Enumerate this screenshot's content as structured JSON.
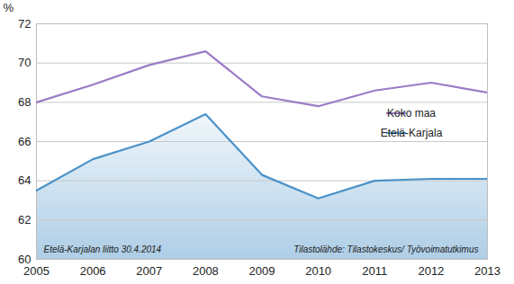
{
  "chart_data": {
    "type": "line",
    "x": [
      2005,
      2006,
      2007,
      2008,
      2009,
      2010,
      2011,
      2012,
      2013
    ],
    "series": [
      {
        "name": "Koko maa",
        "color": "#9b7bc6",
        "values": [
          68.0,
          68.9,
          69.9,
          70.6,
          68.3,
          67.8,
          68.6,
          69.0,
          68.5
        ]
      },
      {
        "name": "Etelä-Karjala",
        "color": "#4b92c9",
        "values": [
          63.5,
          65.1,
          66.0,
          67.4,
          64.3,
          63.1,
          64.0,
          64.1,
          64.1
        ]
      }
    ],
    "xlim": [
      2005,
      2013
    ],
    "xticks": [
      2005,
      2006,
      2007,
      2008,
      2009,
      2010,
      2011,
      2012,
      2013
    ],
    "ylim": [
      60,
      72
    ],
    "yticks": [
      60,
      62,
      64,
      66,
      68,
      70,
      72
    ],
    "y_label": "%",
    "grid": true,
    "legend": "right",
    "annotations": [
      "Etelä-Karjalan liitto 30.4.2014",
      "Tilastolähde: Tilastokeskus/ Työvoimatutkimus"
    ]
  }
}
